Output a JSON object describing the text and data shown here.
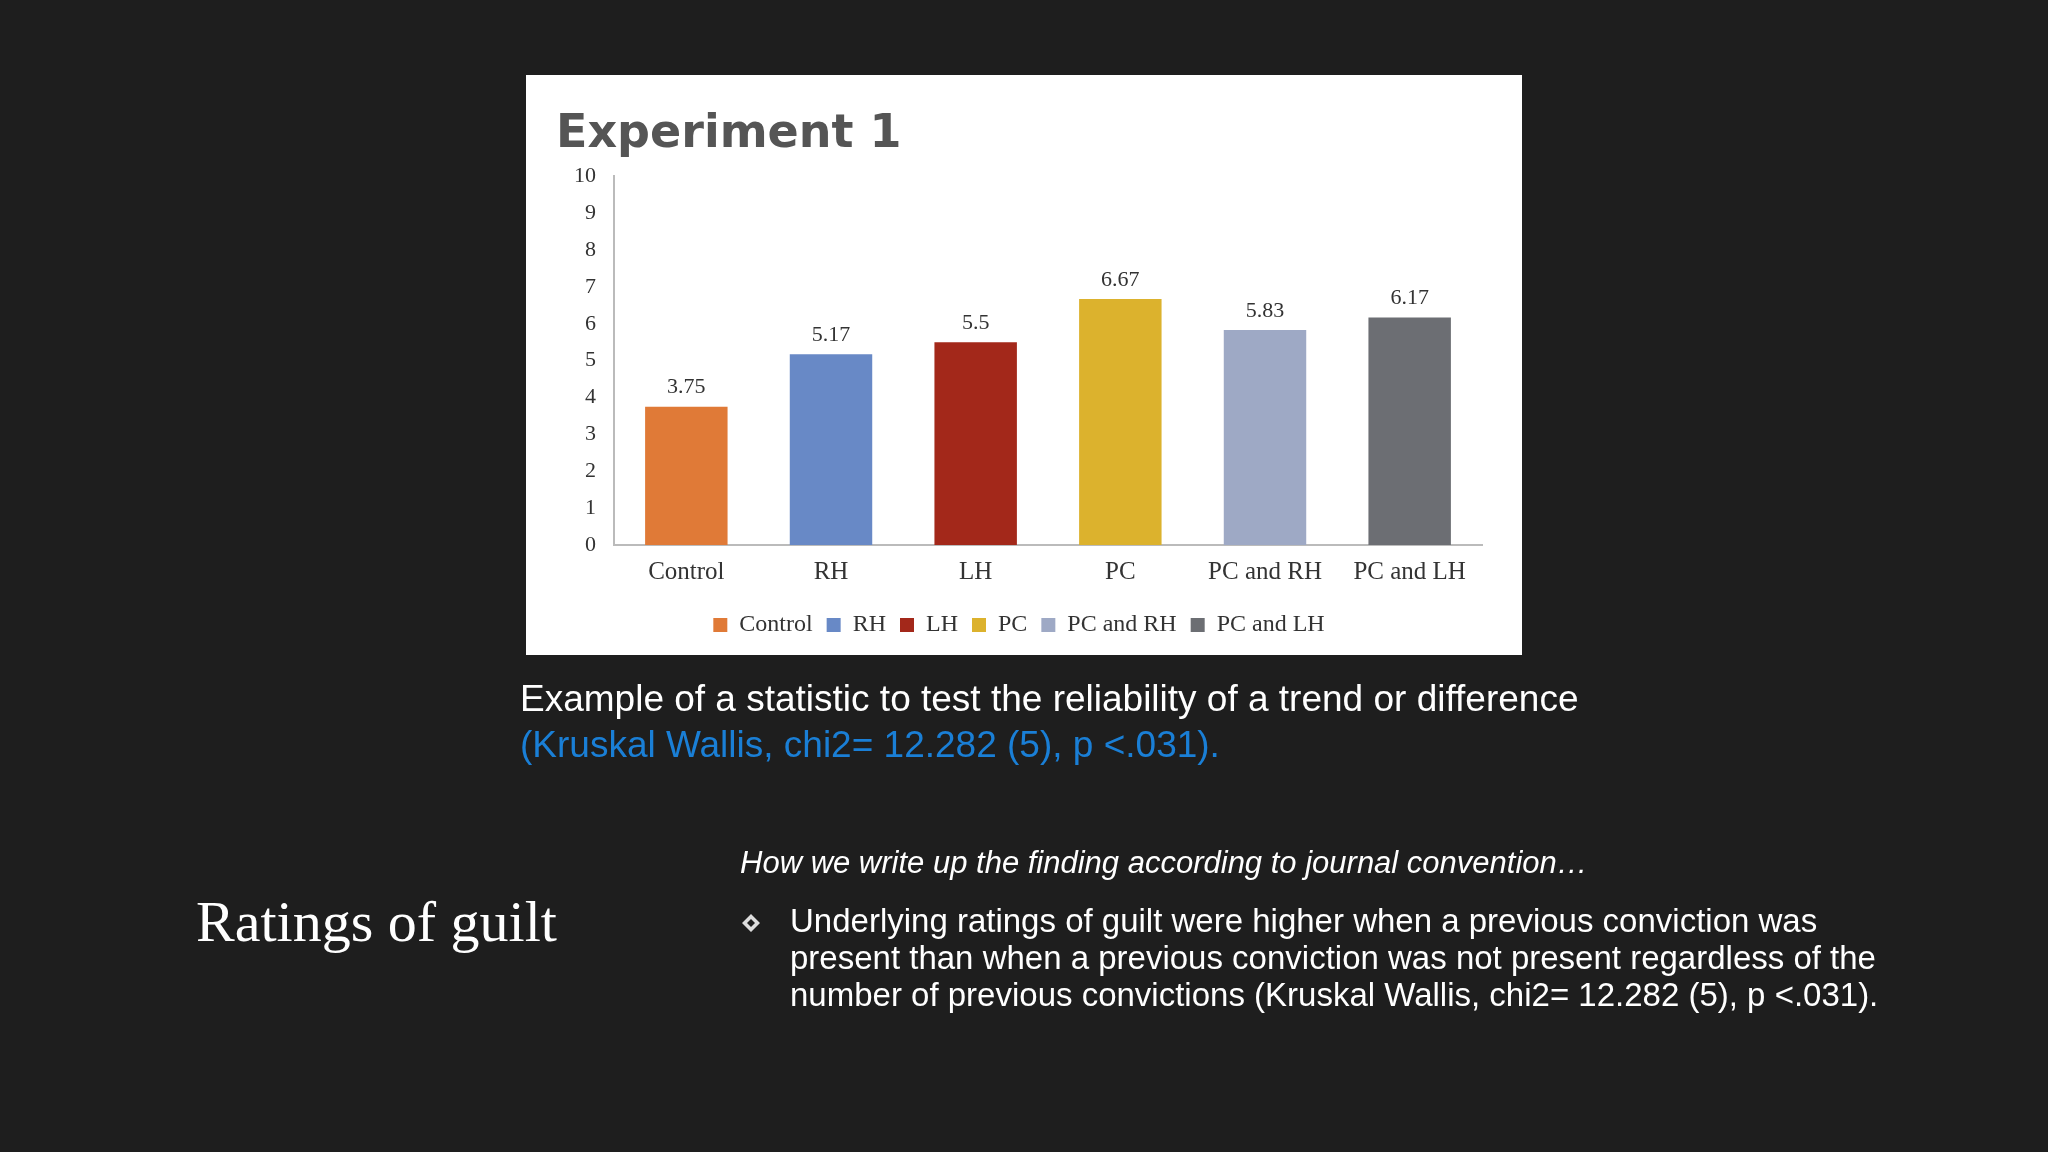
{
  "chart_data": {
    "type": "bar",
    "title": "Experiment 1",
    "categories": [
      "Control",
      "RH",
      "LH",
      "PC",
      "PC and RH",
      "PC and LH"
    ],
    "series": [
      {
        "name": "Control",
        "color": "#e07a37",
        "values": [
          3.75,
          null,
          null,
          null,
          null,
          null
        ]
      },
      {
        "name": "RH",
        "color": "#6889c6",
        "values": [
          null,
          5.17,
          null,
          null,
          null,
          null
        ]
      },
      {
        "name": "LH",
        "color": "#a3281a",
        "values": [
          null,
          null,
          5.5,
          null,
          null,
          null
        ]
      },
      {
        "name": "PC",
        "color": "#dcb22d",
        "values": [
          null,
          null,
          null,
          6.67,
          null,
          null
        ]
      },
      {
        "name": "PC and RH",
        "color": "#9ea9c5",
        "values": [
          null,
          null,
          null,
          null,
          5.83,
          null
        ]
      },
      {
        "name": "PC and LH",
        "color": "#6c6e73",
        "values": [
          null,
          null,
          null,
          null,
          null,
          6.17
        ]
      }
    ],
    "ylim": [
      0,
      10
    ],
    "yticks": [
      0,
      1,
      2,
      3,
      4,
      5,
      6,
      7,
      8,
      9,
      10
    ],
    "grid": false,
    "legend": "bottom",
    "data_labels": true,
    "annotations": [
      "Example of a statistic to test the reliability of a trend or difference",
      "(Kruskal Wallis, chi2= 12.282 (5), p <.031).",
      "Ratings of guilt",
      "How we write up the finding according to journal convention…",
      "Underlying ratings of guilt were higher when a previous conviction was present  than when  a previous conviction was not present regardless of the number of previous convictions (Kruskal Wallis, chi2= 12.282 (5), p <.031)."
    ]
  }
}
